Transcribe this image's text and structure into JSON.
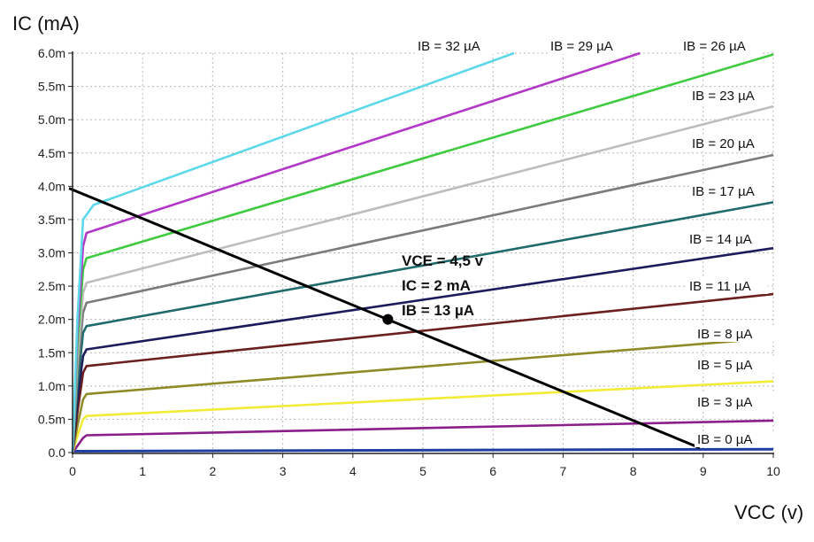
{
  "chart_data": {
    "type": "line",
    "title": "",
    "xlabel": "VCC (v)",
    "ylabel": "IC (mA)",
    "xlim": [
      0,
      10
    ],
    "ylim": [
      0,
      6.0
    ],
    "grid": true,
    "x_ticks": [
      "0",
      "1",
      "2",
      "3",
      "4",
      "5",
      "6",
      "7",
      "8",
      "9",
      "10"
    ],
    "y_ticks": [
      {
        "value": 0.0,
        "label": "0.0"
      },
      {
        "value": 0.5,
        "label": "0.5m"
      },
      {
        "value": 1.0,
        "label": "1.0m"
      },
      {
        "value": 1.5,
        "label": "1.5m"
      },
      {
        "value": 2.0,
        "label": "2.0m"
      },
      {
        "value": 2.5,
        "label": "2.5m"
      },
      {
        "value": 3.0,
        "label": "3.0m"
      },
      {
        "value": 3.5,
        "label": "3.5m"
      },
      {
        "value": 4.0,
        "label": "4.0m"
      },
      {
        "value": 4.5,
        "label": "4.5m"
      },
      {
        "value": 5.0,
        "label": "5.0m"
      },
      {
        "value": 5.5,
        "label": "5.5m"
      },
      {
        "value": 6.0,
        "label": "6.0m"
      }
    ],
    "series": [
      {
        "name": "IB = 0 µA",
        "color": "#1f3fa0",
        "x": [
          0,
          10
        ],
        "y": [
          0.02,
          0.05
        ]
      },
      {
        "name": "IB = 3 µA",
        "color": "#8a1e8a",
        "x": [
          0,
          0.07,
          0.15,
          0.2,
          10
        ],
        "y": [
          0,
          0.1,
          0.22,
          0.26,
          0.48
        ]
      },
      {
        "name": "IB = 5 µA",
        "color": "#f0ec38",
        "x": [
          0,
          0.07,
          0.15,
          0.2,
          10
        ],
        "y": [
          0,
          0.25,
          0.5,
          0.55,
          1.07
        ]
      },
      {
        "name": "IB = 8 µA",
        "color": "#8f8a28",
        "x": [
          0,
          0.07,
          0.15,
          0.2,
          10
        ],
        "y": [
          0,
          0.4,
          0.8,
          0.88,
          1.72
        ]
      },
      {
        "name": "IB = 11 µA",
        "color": "#6b1f1f",
        "x": [
          0,
          0.07,
          0.15,
          0.2,
          10
        ],
        "y": [
          0,
          0.6,
          1.2,
          1.3,
          2.38
        ]
      },
      {
        "name": "IB = 14 µA",
        "color": "#1c1c5c",
        "x": [
          0,
          0.07,
          0.15,
          0.2,
          10
        ],
        "y": [
          0,
          0.8,
          1.45,
          1.55,
          3.07
        ]
      },
      {
        "name": "IB = 17 µA",
        "color": "#1f6b6b",
        "x": [
          0,
          0.07,
          0.15,
          0.2,
          10
        ],
        "y": [
          0,
          1.0,
          1.8,
          1.9,
          3.76
        ]
      },
      {
        "name": "IB = 20 µA",
        "color": "#7b7b7b",
        "x": [
          0,
          0.07,
          0.15,
          0.2,
          10
        ],
        "y": [
          0,
          1.2,
          2.1,
          2.25,
          4.47
        ]
      },
      {
        "name": "IB = 23 µA",
        "color": "#bdbdbd",
        "x": [
          0,
          0.07,
          0.15,
          0.2,
          10
        ],
        "y": [
          0,
          1.4,
          2.4,
          2.55,
          5.2
        ]
      },
      {
        "name": "IB = 26 µA",
        "color": "#3fcb3f",
        "x": [
          0,
          0.07,
          0.15,
          0.2,
          10
        ],
        "y": [
          0,
          1.6,
          2.75,
          2.92,
          5.98
        ]
      },
      {
        "name": "IB = 29 µA",
        "color": "#b438c8",
        "x": [
          0,
          0.07,
          0.15,
          0.2,
          8.1
        ],
        "y": [
          0,
          1.8,
          3.1,
          3.3,
          6.0
        ]
      },
      {
        "name": "IB = 32 µA",
        "color": "#5cd8e8",
        "x": [
          0,
          0.07,
          0.15,
          0.3,
          6.3
        ],
        "y": [
          0,
          2.0,
          3.5,
          3.72,
          6.0
        ]
      }
    ],
    "load_line": {
      "x": [
        -0.05,
        8.95
      ],
      "y": [
        3.97,
        0.07
      ],
      "color": "#000000"
    },
    "operating_point": {
      "x": 4.5,
      "y": 2.0,
      "labels": [
        "VCE = 4,5 v",
        "IC = 2 mA",
        "IB = 13 µA"
      ]
    },
    "curve_labels": [
      {
        "text": "IB = 32 µA"
      },
      {
        "text": "IB = 29 µA"
      },
      {
        "text": "IB = 26 µA"
      },
      {
        "text": "IB = 23 µA"
      },
      {
        "text": "IB = 20 µA"
      },
      {
        "text": "IB = 17 µA"
      },
      {
        "text": "IB = 14 µA"
      },
      {
        "text": "IB = 11 µA"
      },
      {
        "text": "IB = 8 µA"
      },
      {
        "text": "IB = 5 µA"
      },
      {
        "text": "IB = 3 µA"
      },
      {
        "text": "IB = 0 µA"
      }
    ]
  }
}
